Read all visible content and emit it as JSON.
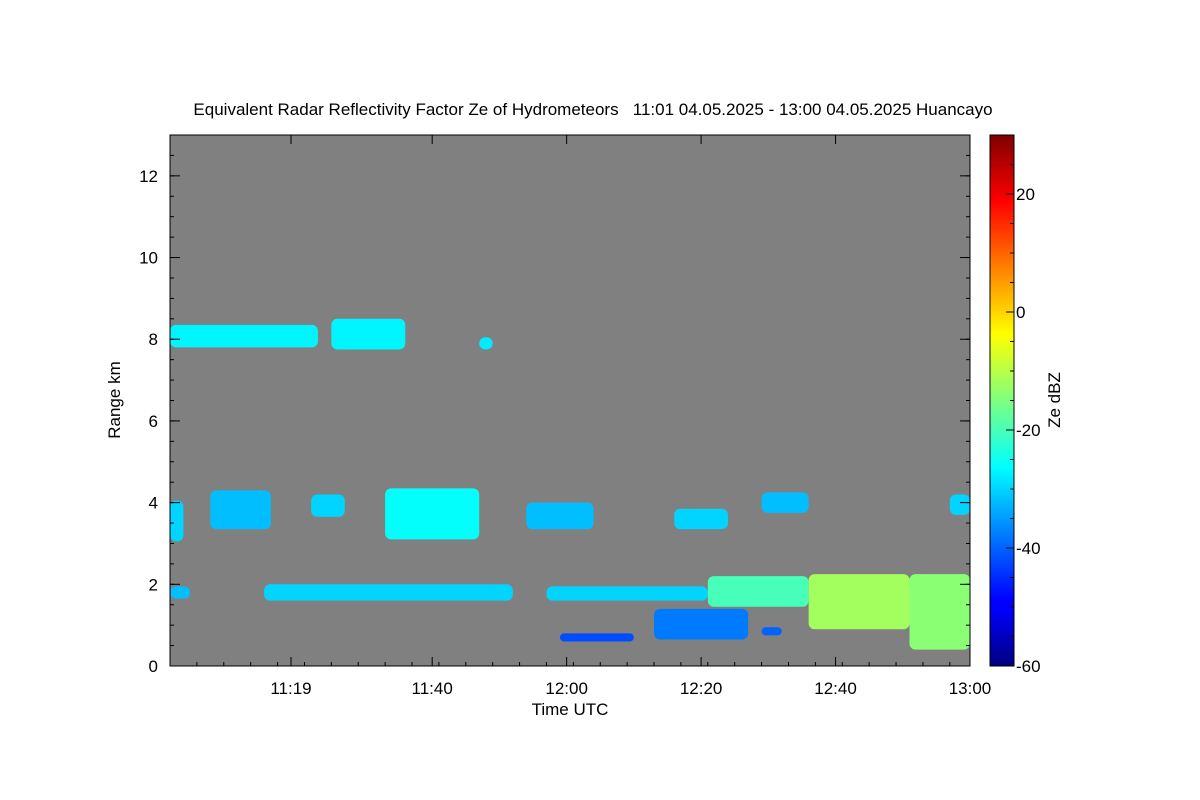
{
  "chart_data": {
    "type": "heatmap",
    "title": "Equivalent Radar Reflectivity Factor Ze of Hydrometeors   11:01 04.05.2025 - 13:00 04.05.2025 Huancayo",
    "xlabel": "Time UTC",
    "ylabel": "Range km",
    "colorbar_label": "Ze dBZ",
    "x_start": "11:01",
    "x_end": "13:00",
    "xlim_minutes": [
      0,
      119
    ],
    "x_ticks": [
      {
        "label": "11:19",
        "minutes": 18
      },
      {
        "label": "11:40",
        "minutes": 39
      },
      {
        "label": "12:00",
        "minutes": 59
      },
      {
        "label": "12:20",
        "minutes": 79
      },
      {
        "label": "12:40",
        "minutes": 99
      },
      {
        "label": "13:00",
        "minutes": 119
      }
    ],
    "ylim": [
      0,
      13
    ],
    "y_ticks": [
      0,
      2,
      4,
      6,
      8,
      10,
      12
    ],
    "colorbar_range": [
      -60,
      30
    ],
    "colorbar_ticks": [
      -60,
      -40,
      -20,
      0,
      20
    ],
    "colormap": "jet",
    "background_color": "#808080",
    "echoes": [
      {
        "t0": 0,
        "t1": 22,
        "r0": 7.8,
        "r1": 8.35,
        "ze": -27
      },
      {
        "t0": 24,
        "t1": 35,
        "r0": 7.75,
        "r1": 8.5,
        "ze": -27
      },
      {
        "t0": 46,
        "t1": 48,
        "r0": 7.75,
        "r1": 8.05,
        "ze": -28
      },
      {
        "t0": 0,
        "t1": 2,
        "r0": 3.05,
        "r1": 4.05,
        "ze": -30
      },
      {
        "t0": 6,
        "t1": 15,
        "r0": 3.35,
        "r1": 4.3,
        "ze": -32
      },
      {
        "t0": 21,
        "t1": 26,
        "r0": 3.65,
        "r1": 4.2,
        "ze": -30
      },
      {
        "t0": 32,
        "t1": 46,
        "r0": 3.1,
        "r1": 4.35,
        "ze": -26
      },
      {
        "t0": 53,
        "t1": 63,
        "r0": 3.35,
        "r1": 4.0,
        "ze": -32
      },
      {
        "t0": 75,
        "t1": 83,
        "r0": 3.35,
        "r1": 3.85,
        "ze": -30
      },
      {
        "t0": 88,
        "t1": 95,
        "r0": 3.75,
        "r1": 4.25,
        "ze": -32
      },
      {
        "t0": 116,
        "t1": 119,
        "r0": 3.7,
        "r1": 4.2,
        "ze": -30
      },
      {
        "t0": 0,
        "t1": 3,
        "r0": 1.65,
        "r1": 1.95,
        "ze": -32
      },
      {
        "t0": 14,
        "t1": 51,
        "r0": 1.6,
        "r1": 2.0,
        "ze": -30
      },
      {
        "t0": 56,
        "t1": 80,
        "r0": 1.6,
        "r1": 1.95,
        "ze": -30
      },
      {
        "t0": 80,
        "t1": 95,
        "r0": 1.45,
        "r1": 2.2,
        "ze": -20
      },
      {
        "t0": 95,
        "t1": 110,
        "r0": 0.9,
        "r1": 2.25,
        "ze": -12
      },
      {
        "t0": 110,
        "t1": 119,
        "r0": 0.4,
        "r1": 2.25,
        "ze": -14
      },
      {
        "t0": 58,
        "t1": 69,
        "r0": 0.6,
        "r1": 0.8,
        "ze": -42
      },
      {
        "t0": 72,
        "t1": 86,
        "r0": 0.65,
        "r1": 1.4,
        "ze": -38
      },
      {
        "t0": 88,
        "t1": 91,
        "r0": 0.75,
        "r1": 0.95,
        "ze": -40
      }
    ]
  }
}
